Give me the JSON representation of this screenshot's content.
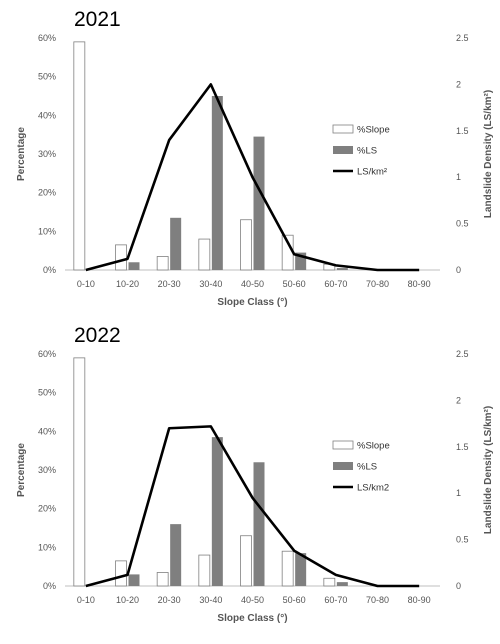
{
  "chart_data": [
    {
      "type": "bar",
      "title": "2021",
      "categories": [
        "0-10",
        "10-20",
        "20-30",
        "30-40",
        "40-50",
        "50-60",
        "60-70",
        "70-80",
        "80-90"
      ],
      "xlabel": "Slope Class (°)",
      "ylabel": "Percentage",
      "y2label": "Landslide Density (LS/km²)",
      "ylim": [
        0,
        60
      ],
      "y2lim": [
        0,
        2.5
      ],
      "yticks": [
        "0%",
        "10%",
        "20%",
        "30%",
        "40%",
        "50%",
        "60%"
      ],
      "y2ticks": [
        "0",
        "0.5",
        "1",
        "1.5",
        "2",
        "2.5"
      ],
      "series": [
        {
          "name": "%Slope",
          "kind": "bar",
          "color": "#ffffff",
          "values": [
            59,
            6.5,
            3.5,
            8,
            13,
            9,
            1.5,
            0,
            0
          ]
        },
        {
          "name": "%LS",
          "kind": "bar",
          "color": "#7f7f7f",
          "values": [
            0,
            2,
            13.5,
            45,
            34.5,
            4.5,
            0.5,
            0,
            0
          ]
        },
        {
          "name": "LS/km²",
          "kind": "line",
          "axis": "right",
          "color": "#000000",
          "values": [
            0,
            0.12,
            1.4,
            2.0,
            1.0,
            0.17,
            0.05,
            0,
            0
          ]
        }
      ],
      "legend": "right"
    },
    {
      "type": "bar",
      "title": "2022",
      "categories": [
        "0-10",
        "10-20",
        "20-30",
        "30-40",
        "40-50",
        "50-60",
        "60-70",
        "70-80",
        "80-90"
      ],
      "xlabel": "Slope Class (°)",
      "ylabel": "Percentage",
      "y2label": "Landslide Density (LS/km²)",
      "ylim": [
        0,
        60
      ],
      "y2lim": [
        0,
        2.5
      ],
      "yticks": [
        "0%",
        "10%",
        "20%",
        "30%",
        "40%",
        "50%",
        "60%"
      ],
      "y2ticks": [
        "0",
        "0.5",
        "1",
        "1.5",
        "2",
        "2.5"
      ],
      "series": [
        {
          "name": "%Slope",
          "kind": "bar",
          "color": "#ffffff",
          "values": [
            59,
            6.5,
            3.5,
            8,
            13,
            9,
            2,
            0,
            0
          ]
        },
        {
          "name": "%LS",
          "kind": "bar",
          "color": "#7f7f7f",
          "values": [
            0,
            3,
            16,
            38.5,
            32,
            8.5,
            1,
            0,
            0
          ]
        },
        {
          "name": "LS/km2",
          "kind": "line",
          "axis": "right",
          "color": "#000000",
          "values": [
            0,
            0.12,
            1.7,
            1.72,
            0.95,
            0.38,
            0.12,
            0,
            0
          ]
        }
      ],
      "legend": "right"
    }
  ]
}
